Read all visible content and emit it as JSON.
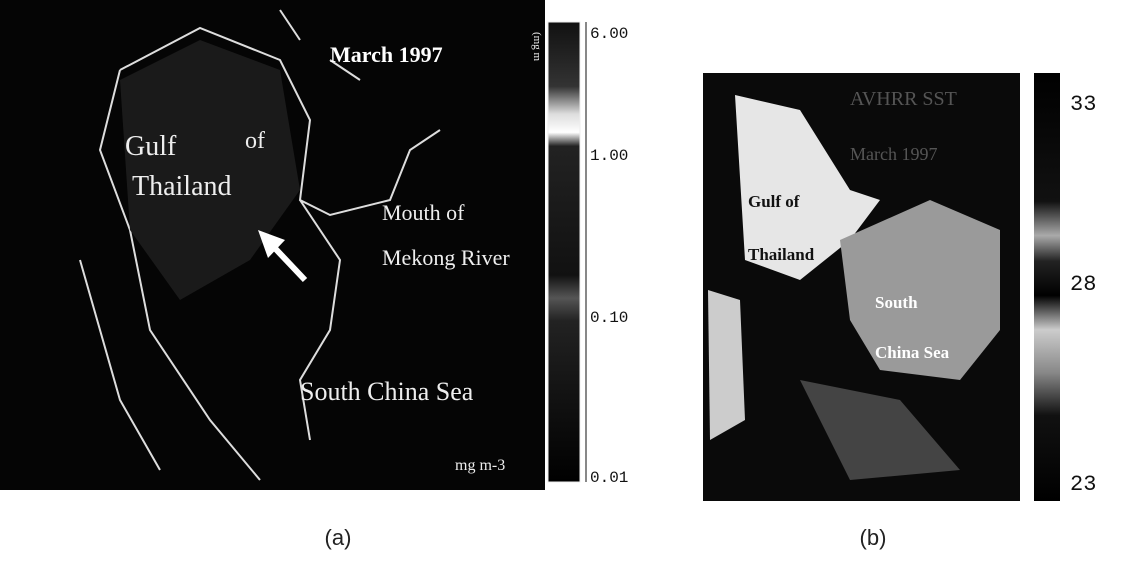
{
  "panels": [
    {
      "caption": "(a)",
      "labels": {
        "date": "March 1997",
        "gulf": "Gulf",
        "of": "of",
        "thailand": "Thailand",
        "mouth": "Mouth of",
        "mekong": "Mekong River",
        "sea": "South China Sea",
        "unit": "mg m-3",
        "bar_unit": "(mg m"
      },
      "colorbar_ticks": [
        "6.00",
        "1.00",
        "0.10",
        "0.01"
      ]
    },
    {
      "caption": "(b)",
      "labels": {
        "title": "AVHRR SST",
        "date": "March 1997",
        "gulf": "Gulf of",
        "thailand": "Thailand",
        "south": "South",
        "china_sea": "China Sea"
      },
      "colorbar_ticks": [
        "33",
        "28",
        "23"
      ]
    }
  ]
}
